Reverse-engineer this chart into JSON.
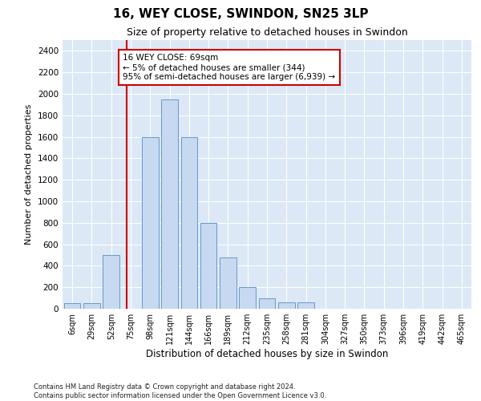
{
  "title": "16, WEY CLOSE, SWINDON, SN25 3LP",
  "subtitle": "Size of property relative to detached houses in Swindon",
  "xlabel": "Distribution of detached houses by size in Swindon",
  "ylabel": "Number of detached properties",
  "categories": [
    "6sqm",
    "29sqm",
    "52sqm",
    "75sqm",
    "98sqm",
    "121sqm",
    "144sqm",
    "166sqm",
    "189sqm",
    "212sqm",
    "235sqm",
    "258sqm",
    "281sqm",
    "304sqm",
    "327sqm",
    "350sqm",
    "373sqm",
    "396sqm",
    "419sqm",
    "442sqm",
    "465sqm"
  ],
  "bar_heights": [
    50,
    50,
    500,
    0,
    1600,
    1950,
    1600,
    800,
    480,
    200,
    100,
    60,
    60,
    0,
    0,
    0,
    0,
    0,
    0,
    0,
    0
  ],
  "bar_color": "#c6d9f1",
  "bar_edge_color": "#6699cc",
  "ylim": [
    0,
    2500
  ],
  "yticks": [
    0,
    200,
    400,
    600,
    800,
    1000,
    1200,
    1400,
    1600,
    1800,
    2000,
    2200,
    2400
  ],
  "vline_color": "#cc0000",
  "vline_pos": 2.8,
  "annotation_text": "16 WEY CLOSE: 69sqm\n← 5% of detached houses are smaller (344)\n95% of semi-detached houses are larger (6,939) →",
  "annotation_box_facecolor": "#ffffff",
  "annotation_box_edgecolor": "#cc0000",
  "footer": "Contains HM Land Registry data © Crown copyright and database right 2024.\nContains public sector information licensed under the Open Government Licence v3.0.",
  "plot_bg_color": "#dce8f5",
  "grid_color": "#ffffff",
  "title_fontsize": 11,
  "subtitle_fontsize": 9,
  "ylabel_fontsize": 8,
  "xlabel_fontsize": 8.5
}
